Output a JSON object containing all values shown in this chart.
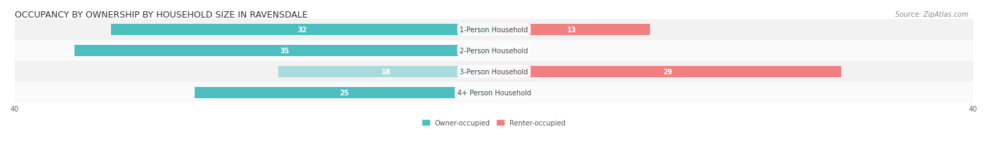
{
  "title": "OCCUPANCY BY OWNERSHIP BY HOUSEHOLD SIZE IN RAVENSDALE",
  "source": "Source: ZipAtlas.com",
  "categories": [
    "1-Person Household",
    "2-Person Household",
    "3-Person Household",
    "4+ Person Household"
  ],
  "owner_values": [
    32,
    35,
    18,
    25
  ],
  "renter_values": [
    13,
    0,
    29,
    0
  ],
  "owner_color": "#4DBFBF",
  "renter_color": "#F08080",
  "owner_color_light": "#A8DCDC",
  "renter_color_light": "#F5B8C4",
  "bar_bg_color": "#F0F0F0",
  "row_bg_color": "#FAFAFA",
  "axis_max": 40,
  "bar_height": 0.55,
  "title_fontsize": 9,
  "label_fontsize": 7,
  "tick_fontsize": 7,
  "source_fontsize": 7
}
